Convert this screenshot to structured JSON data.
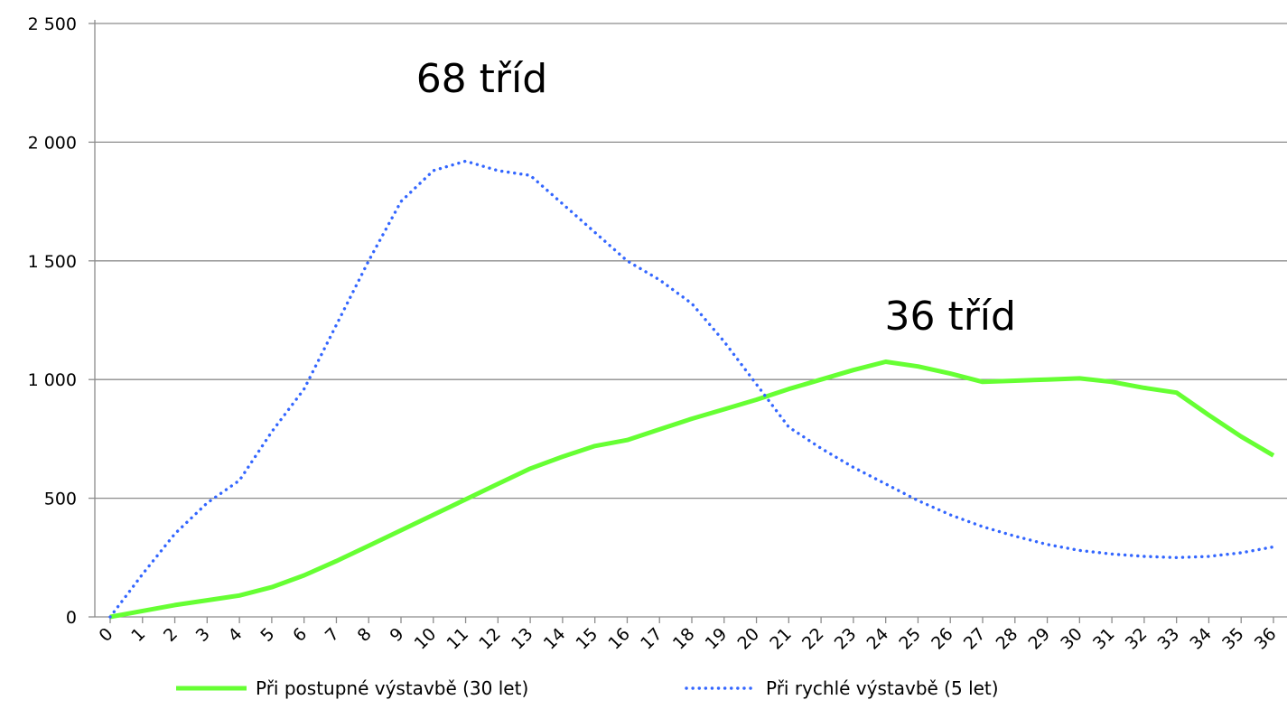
{
  "chart_data": {
    "type": "line",
    "x": [
      0,
      1,
      2,
      3,
      4,
      5,
      6,
      7,
      8,
      9,
      10,
      11,
      12,
      13,
      14,
      15,
      16,
      17,
      18,
      19,
      20,
      21,
      22,
      23,
      24,
      25,
      26,
      27,
      28,
      29,
      30,
      31,
      32,
      33,
      34,
      35,
      36
    ],
    "x_tick_labels": [
      "0",
      "1",
      "2",
      "3",
      "4",
      "5",
      "6",
      "7",
      "8",
      "9",
      "10",
      "11",
      "12",
      "13",
      "14",
      "15",
      "16",
      "17",
      "18",
      "19",
      "20",
      "21",
      "22",
      "23",
      "24",
      "25",
      "26",
      "27",
      "28",
      "29",
      "30",
      "31",
      "32",
      "33",
      "34",
      "35",
      "36"
    ],
    "ylim": [
      0,
      2500
    ],
    "y_ticks": [
      0,
      500,
      1000,
      1500,
      2000,
      2500
    ],
    "y_tick_labels": [
      "0",
      "500",
      "1 000",
      "1 500",
      "2 000",
      "2 500"
    ],
    "grid": "horizontal",
    "legend_position": "bottom",
    "series": [
      {
        "name": "Při postupné výstavbě (30 let)",
        "color": "#66ff33",
        "style": "solid",
        "values": [
          0,
          25,
          50,
          70,
          90,
          125,
          175,
          235,
          300,
          365,
          430,
          495,
          560,
          625,
          675,
          720,
          745,
          790,
          835,
          875,
          915,
          960,
          1000,
          1040,
          1075,
          1055,
          1025,
          990,
          995,
          1000,
          1005,
          990,
          965,
          945,
          850,
          760,
          680
        ]
      },
      {
        "name": "Při rychlé výstavbě (5 let)",
        "color": "#3366ff",
        "style": "dotted",
        "values": [
          0,
          180,
          350,
          480,
          575,
          780,
          960,
          1230,
          1500,
          1750,
          1880,
          1920,
          1880,
          1860,
          1740,
          1620,
          1500,
          1420,
          1320,
          1160,
          980,
          800,
          710,
          630,
          560,
          490,
          430,
          380,
          340,
          305,
          280,
          265,
          255,
          250,
          255,
          270,
          295
        ]
      }
    ],
    "annotations": [
      {
        "text": "68 tříd",
        "x": 11.5,
        "y": 2210
      },
      {
        "text": "36 tříd",
        "x": 26,
        "y": 1210
      }
    ]
  }
}
